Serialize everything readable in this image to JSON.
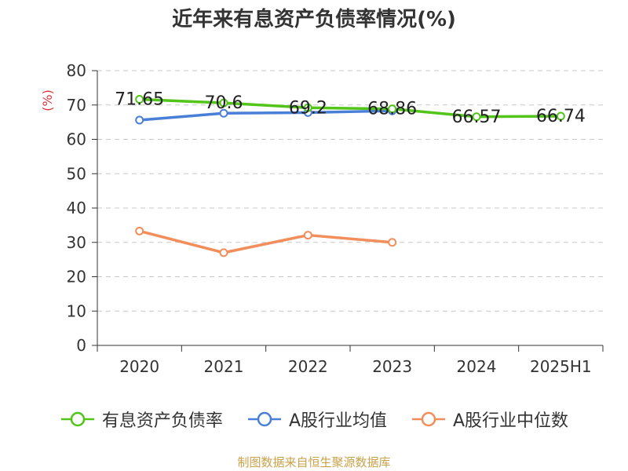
{
  "title": "近年来有息资产负债率情况(%)",
  "source": "制图数据来自恒生聚源数据库",
  "chart_data": {
    "type": "line",
    "title": "近年来有息资产负债率情况(%)",
    "xlabel": "",
    "ylabel": "(%)",
    "ylim": [
      0,
      80
    ],
    "yticks": [
      0,
      10,
      20,
      30,
      40,
      50,
      60,
      70,
      80
    ],
    "grid": true,
    "legend_position": "bottom",
    "categories": [
      "2020",
      "2021",
      "2022",
      "2023",
      "2024",
      "2025H1"
    ],
    "series": [
      {
        "name": "有息资产负债率",
        "color": "#52c41a",
        "values": [
          71.65,
          70.6,
          69.2,
          68.86,
          66.57,
          66.74
        ],
        "labels": [
          "71.65",
          "70.6",
          "69.2",
          "68.86",
          "66.57",
          "66.74"
        ]
      },
      {
        "name": "A股行业均值",
        "color": "#4a7fd8",
        "values": [
          65.6,
          67.6,
          67.8,
          68.3,
          null,
          null
        ]
      },
      {
        "name": "A股行业中位数",
        "color": "#f28e5b",
        "values": [
          33.3,
          27.0,
          32.1,
          30.0,
          null,
          null
        ]
      }
    ]
  }
}
